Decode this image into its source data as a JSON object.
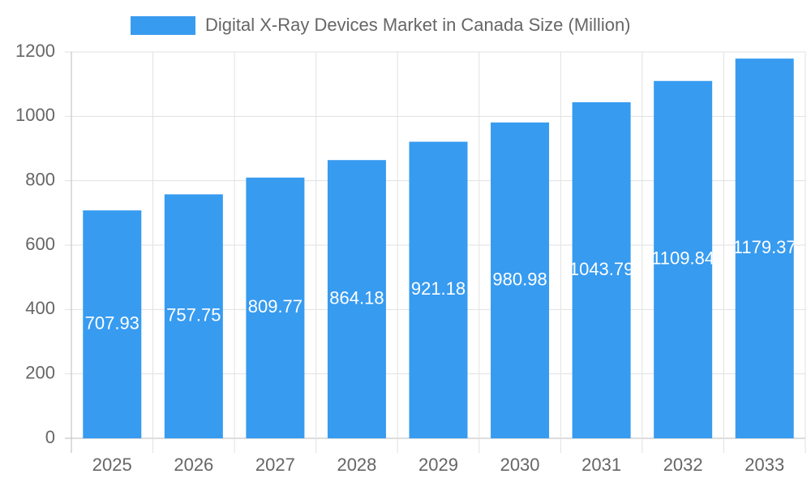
{
  "chart_data": {
    "type": "bar",
    "categories": [
      "2025",
      "2026",
      "2027",
      "2028",
      "2029",
      "2030",
      "2031",
      "2032",
      "2033"
    ],
    "series": [
      {
        "name": "Digital X-Ray Devices Market in Canada Size (Million)",
        "color": "#379bf0",
        "values": [
          707.93,
          757.75,
          809.77,
          864.18,
          921.18,
          980.98,
          1043.79,
          1109.84,
          1179.37
        ]
      }
    ],
    "ylim": [
      0,
      1200
    ],
    "yticks": [
      0,
      200,
      400,
      600,
      800,
      1000,
      1200
    ],
    "grid": true
  }
}
